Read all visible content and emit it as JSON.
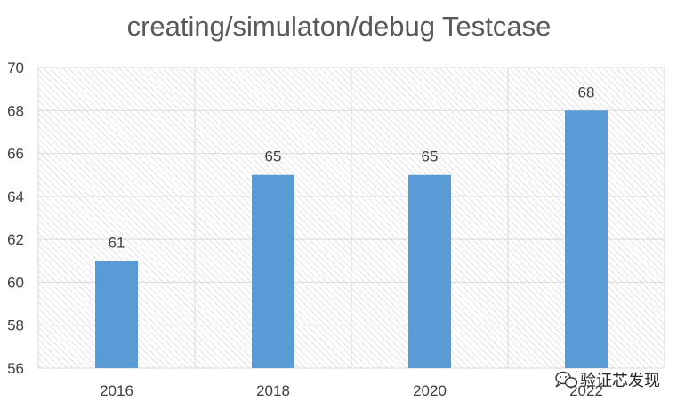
{
  "chart_data": {
    "type": "bar",
    "title": "creating/simulaton/debug Testcase",
    "xlabel": "",
    "ylabel": "",
    "categories": [
      "2016",
      "2018",
      "2020",
      "2022"
    ],
    "values": [
      61,
      65,
      65,
      68
    ],
    "ylim": [
      56,
      70
    ],
    "y_ticks": [
      56,
      58,
      60,
      62,
      64,
      66,
      68,
      70
    ],
    "y_tick_labels": [
      "56",
      "58",
      "60",
      "62",
      "64",
      "66",
      "68",
      "70"
    ],
    "data_labels": [
      "61",
      "65",
      "65",
      "68"
    ],
    "grid": true,
    "legend": "none",
    "bar_color": "#5B9BD5"
  },
  "watermark": {
    "text": "验证芯发现"
  }
}
